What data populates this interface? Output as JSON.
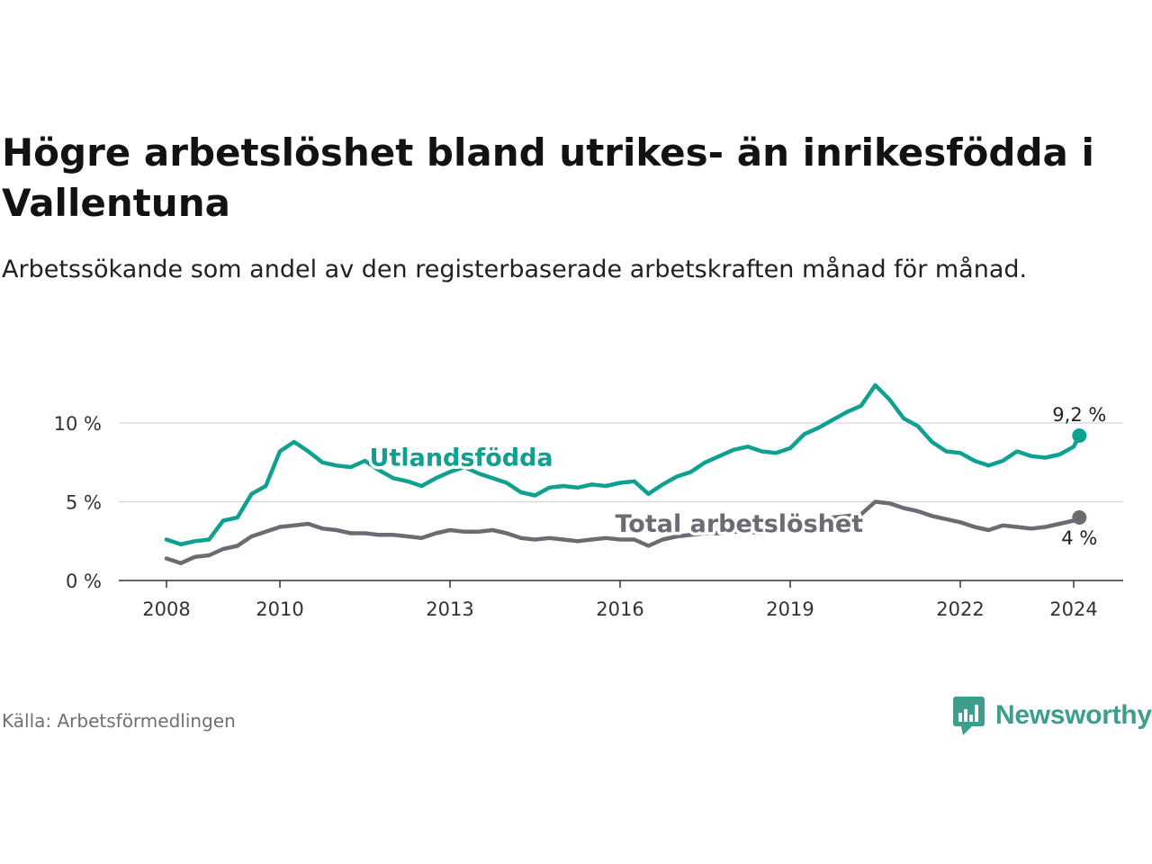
{
  "title": "Högre arbetslöshet bland utrikes- än inrikesfödda i Vallentuna",
  "subtitle": "Arbetssökande som andel av den registerbaserade arbetskraften månad för månad.",
  "source": "Källa: Arbetsförmedlingen",
  "brand": {
    "name": "Newsworthy",
    "icon": "newsworthy-logo-icon",
    "color": "#3d9e8d"
  },
  "chart_data": {
    "type": "line",
    "title": "Högre arbetslöshet bland utrikes- än inrikesfödda i Vallentuna",
    "xlabel": "",
    "ylabel": "",
    "ylim": [
      0,
      13
    ],
    "xlim": [
      2007.8,
      2025.1
    ],
    "grid": true,
    "y_ticks": [
      0,
      5,
      10
    ],
    "y_tick_labels": [
      "0 %",
      "5 %",
      "10 %"
    ],
    "x_ticks": [
      2008,
      2010,
      2013,
      2016,
      2019,
      2022,
      2024
    ],
    "x_tick_labels": [
      "2008",
      "2010",
      "2013",
      "2016",
      "2019",
      "2022",
      "2024"
    ],
    "series": [
      {
        "name": "Utlandsfödda",
        "color": "#0fa090",
        "end_label": "9,2 %",
        "x": [
          2008.0,
          2008.25,
          2008.5,
          2008.75,
          2009.0,
          2009.25,
          2009.5,
          2009.75,
          2010.0,
          2010.25,
          2010.5,
          2010.75,
          2011.0,
          2011.25,
          2011.5,
          2011.75,
          2012.0,
          2012.25,
          2012.5,
          2012.75,
          2013.0,
          2013.25,
          2013.5,
          2013.75,
          2014.0,
          2014.25,
          2014.5,
          2014.75,
          2015.0,
          2015.25,
          2015.5,
          2015.75,
          2016.0,
          2016.25,
          2016.5,
          2016.75,
          2017.0,
          2017.25,
          2017.5,
          2017.75,
          2018.0,
          2018.25,
          2018.5,
          2018.75,
          2019.0,
          2019.25,
          2019.5,
          2019.75,
          2020.0,
          2020.25,
          2020.5,
          2020.75,
          2021.0,
          2021.25,
          2021.5,
          2021.75,
          2022.0,
          2022.25,
          2022.5,
          2022.75,
          2023.0,
          2023.25,
          2023.5,
          2023.75,
          2024.0,
          2024.1
        ],
        "values": [
          2.6,
          2.3,
          2.5,
          2.6,
          3.8,
          4.0,
          5.5,
          6.0,
          8.2,
          8.8,
          8.2,
          7.5,
          7.3,
          7.2,
          7.6,
          7.0,
          6.5,
          6.3,
          6.0,
          6.5,
          6.9,
          7.2,
          6.8,
          6.5,
          6.2,
          5.6,
          5.4,
          5.9,
          6.0,
          5.9,
          6.1,
          6.0,
          6.2,
          6.3,
          5.5,
          6.1,
          6.6,
          6.9,
          7.5,
          7.9,
          8.3,
          8.5,
          8.2,
          8.1,
          8.4,
          9.3,
          9.7,
          10.2,
          10.7,
          11.1,
          12.4,
          11.5,
          10.3,
          9.8,
          8.8,
          8.2,
          8.1,
          7.6,
          7.3,
          7.6,
          8.2,
          7.9,
          7.8,
          8.0,
          8.5,
          9.2
        ]
      },
      {
        "name": "Total arbetslöshet",
        "color": "#6b6b73",
        "end_label": "4 %",
        "x": [
          2008.0,
          2008.25,
          2008.5,
          2008.75,
          2009.0,
          2009.25,
          2009.5,
          2009.75,
          2010.0,
          2010.25,
          2010.5,
          2010.75,
          2011.0,
          2011.25,
          2011.5,
          2011.75,
          2012.0,
          2012.25,
          2012.5,
          2012.75,
          2013.0,
          2013.25,
          2013.5,
          2013.75,
          2014.0,
          2014.25,
          2014.5,
          2014.75,
          2015.0,
          2015.25,
          2015.5,
          2015.75,
          2016.0,
          2016.25,
          2016.5,
          2016.75,
          2017.0,
          2017.25,
          2017.5,
          2017.75,
          2018.0,
          2018.25,
          2018.5,
          2018.75,
          2019.0,
          2019.25,
          2019.5,
          2019.75,
          2020.0,
          2020.25,
          2020.5,
          2020.75,
          2021.0,
          2021.25,
          2021.5,
          2021.75,
          2022.0,
          2022.25,
          2022.5,
          2022.75,
          2023.0,
          2023.25,
          2023.5,
          2023.75,
          2024.0,
          2024.1
        ],
        "values": [
          1.4,
          1.1,
          1.5,
          1.6,
          2.0,
          2.2,
          2.8,
          3.1,
          3.4,
          3.5,
          3.6,
          3.3,
          3.2,
          3.0,
          3.0,
          2.9,
          2.9,
          2.8,
          2.7,
          3.0,
          3.2,
          3.1,
          3.1,
          3.2,
          3.0,
          2.7,
          2.6,
          2.7,
          2.6,
          2.5,
          2.6,
          2.7,
          2.6,
          2.6,
          2.2,
          2.6,
          2.8,
          2.9,
          3.0,
          3.0,
          3.1,
          3.1,
          3.0,
          3.2,
          3.4,
          3.6,
          3.8,
          4.0,
          4.1,
          4.2,
          5.0,
          4.9,
          4.6,
          4.4,
          4.1,
          3.9,
          3.7,
          3.4,
          3.2,
          3.5,
          3.4,
          3.3,
          3.4,
          3.6,
          3.8,
          4.0
        ]
      }
    ],
    "annotations": [
      {
        "text": "Utlandsfödda",
        "series": "Utlandsfödda",
        "x": 2013.2,
        "y": 7.3
      },
      {
        "text": "Total arbetslöshet",
        "series": "Total arbetslöshet",
        "x": 2018.1,
        "y": 3.1
      }
    ]
  }
}
